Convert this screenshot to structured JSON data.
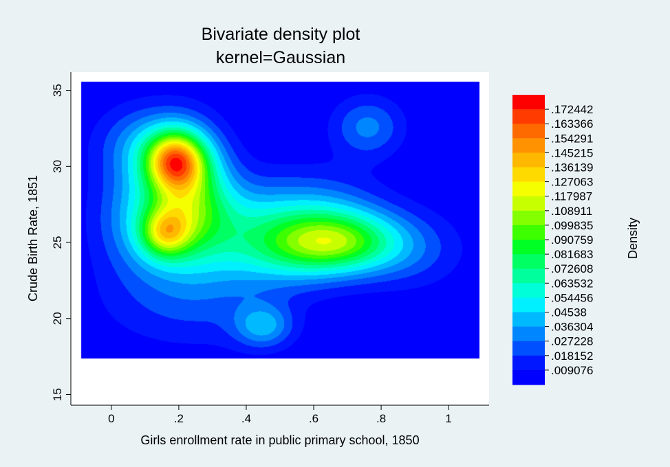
{
  "chart_data": {
    "type": "heatmap",
    "title": [
      "Bivariate density plot",
      "kernel=Gaussian"
    ],
    "xlabel": "Girls enrollment rate in public primary school, 1850",
    "ylabel": "Crude Birth Rate, 1851",
    "colorbar_label": "Density",
    "xlim": [
      -0.12,
      1.12
    ],
    "ylim": [
      14.3,
      36.2
    ],
    "x_ticks": [
      0,
      0.2,
      0.4,
      0.6,
      0.8,
      1
    ],
    "x_tick_labels": [
      "0",
      ".2",
      ".4",
      ".6",
      ".8",
      "1"
    ],
    "y_ticks": [
      15,
      20,
      25,
      30,
      35
    ],
    "y_tick_labels": [
      "15",
      "20",
      "25",
      "30",
      "35"
    ],
    "grid": true,
    "density_extent": {
      "x": [
        -0.09,
        1.09
      ],
      "y": [
        17.4,
        35.6
      ]
    },
    "density_peaks": [
      {
        "x": 0.19,
        "y": 30.4,
        "density": 0.176
      },
      {
        "x": 0.16,
        "y": 25.5,
        "density": 0.15
      },
      {
        "x": 0.7,
        "y": 24.9,
        "density": 0.12
      },
      {
        "x": 0.76,
        "y": 32.5,
        "density": 0.03
      },
      {
        "x": 0.45,
        "y": 19.4,
        "density": 0.04
      }
    ],
    "colorbar_levels": [
      ".172442",
      ".163366",
      ".154291",
      ".145215",
      ".136139",
      ".127063",
      ".117987",
      ".108911",
      ".099835",
      ".090759",
      ".081683",
      ".072608",
      ".063532",
      ".054456",
      ".04538",
      ".036304",
      ".027228",
      ".018152",
      ".009076"
    ],
    "colorbar_colors": [
      "#ff0000",
      "#ff3b00",
      "#ff6a00",
      "#ff9200",
      "#ffb800",
      "#ffda00",
      "#f6ff00",
      "#c8ff00",
      "#84ff00",
      "#3dff00",
      "#00ff24",
      "#00ff62",
      "#00ff9d",
      "#00ffd8",
      "#00f0ff",
      "#00b9ff",
      "#0086ff",
      "#0050ff",
      "#0017ff",
      "#0000ff"
    ]
  }
}
